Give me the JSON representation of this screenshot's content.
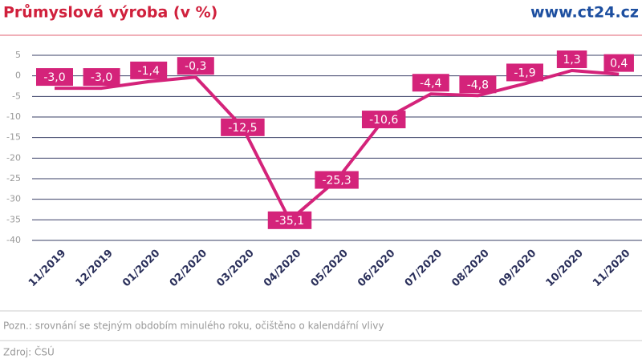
{
  "header": {
    "title": "Průmyslová výroba (v %)",
    "site": "www.ct24.cz"
  },
  "chart_data": {
    "type": "line",
    "categories": [
      "11/2019",
      "12/2019",
      "01/2020",
      "02/2020",
      "03/2020",
      "04/2020",
      "05/2020",
      "06/2020",
      "07/2020",
      "08/2020",
      "09/2020",
      "10/2020",
      "11/2020"
    ],
    "values": [
      -3.0,
      -3.0,
      -1.4,
      -0.3,
      -12.5,
      -35.1,
      -25.3,
      -10.6,
      -4.4,
      -4.8,
      -1.9,
      1.3,
      0.4
    ],
    "value_labels": [
      "-3,0",
      "-3,0",
      "-1,4",
      "-0,3",
      "-12,5",
      "-35,1",
      "-25,3",
      "-10,6",
      "-4,4",
      "-4,8",
      "-1,9",
      "1,3",
      "0,4"
    ],
    "color": "#d4237a",
    "ylim": [
      -40,
      5
    ],
    "yticks": [
      5,
      0,
      -5,
      -10,
      -15,
      -20,
      -25,
      -30,
      -35,
      -40
    ],
    "grid": true
  },
  "footer": {
    "note": "Pozn.: srovnání se stejným obdobím minulého roku, očištěno o kalendářní vlivy",
    "source": "Zdroj: ČSÚ"
  }
}
